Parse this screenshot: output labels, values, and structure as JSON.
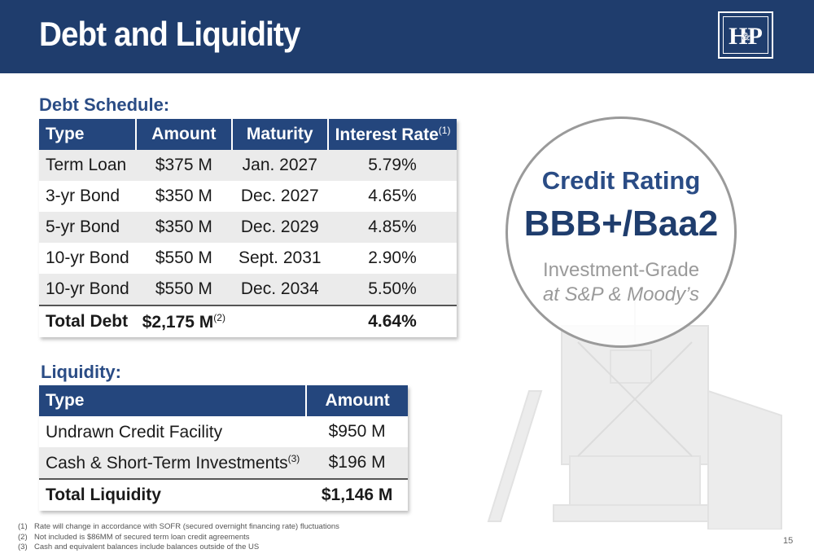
{
  "header": {
    "title": "Debt and Liquidity",
    "logo_text": "H&P"
  },
  "debt_schedule": {
    "heading": "Debt Schedule:",
    "columns": [
      "Type",
      "Amount",
      "Maturity",
      "Interest Rate"
    ],
    "interest_rate_footnote": "(1)",
    "rows": [
      {
        "type": "Term Loan",
        "amount": "$375 M",
        "maturity": "Jan. 2027",
        "rate": "5.79%"
      },
      {
        "type": "3-yr Bond",
        "amount": "$350 M",
        "maturity": "Dec. 2027",
        "rate": "4.65%"
      },
      {
        "type": "5-yr Bond",
        "amount": "$350 M",
        "maturity": "Dec. 2029",
        "rate": "4.85%"
      },
      {
        "type": "10-yr Bond",
        "amount": "$550 M",
        "maturity": "Sept. 2031",
        "rate": "2.90%"
      },
      {
        "type": "10-yr Bond",
        "amount": "$550 M",
        "maturity": "Dec. 2034",
        "rate": "5.50%"
      }
    ],
    "total": {
      "type": "Total Debt",
      "amount": "$2,175 M",
      "amount_footnote": "(2)",
      "maturity": "",
      "rate": "4.64%"
    }
  },
  "liquidity": {
    "heading": "Liquidity:",
    "columns": [
      "Type",
      "Amount"
    ],
    "rows": [
      {
        "type": "Undrawn Credit Facility",
        "footnote": "",
        "amount": "$950 M"
      },
      {
        "type": "Cash & Short-Term Investments",
        "footnote": "(3)",
        "amount": "$196 M"
      }
    ],
    "total": {
      "type": "Total Liquidity",
      "amount": "$1,146 M"
    }
  },
  "credit": {
    "label": "Credit Rating",
    "value": "BBB+/Baa2",
    "line1": "Investment-Grade",
    "line2": "at S&P & Moody’s"
  },
  "footnotes": [
    {
      "num": "(1)",
      "text": "Rate will change in accordance with SOFR (secured overnight financing rate) fluctuations"
    },
    {
      "num": "(2)",
      "text": "Not included is $86MM of secured term loan credit agreements"
    },
    {
      "num": "(3)",
      "text": "Cash and equivalent balances include balances outside of the US"
    }
  ],
  "page_number": "15",
  "colors": {
    "brand_navy": "#1f3d6d",
    "heading_blue": "#2a4c85",
    "table_header": "#24467d"
  }
}
